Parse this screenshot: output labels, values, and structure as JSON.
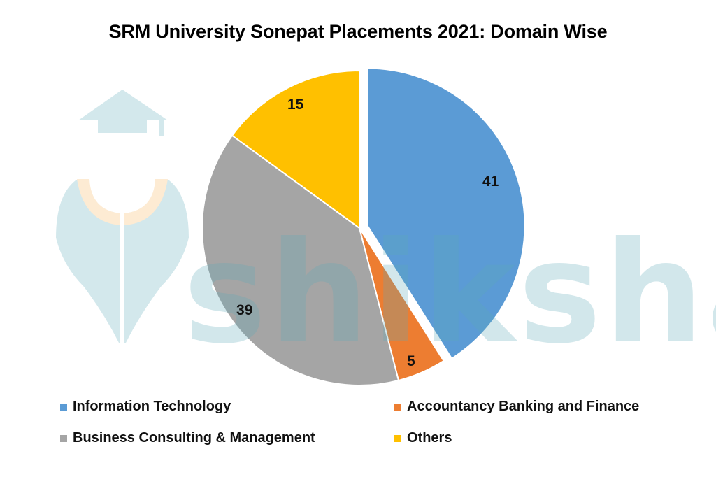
{
  "chart_data": {
    "type": "pie",
    "title": "SRM University Sonepat Placements 2021: Domain Wise",
    "categories": [
      "Information Technology",
      "Accountancy Banking and Finance",
      "Business Consulting & Management",
      "Others"
    ],
    "values": [
      41,
      5,
      39,
      15
    ],
    "colors": [
      "#5B9BD5",
      "#ED7D31",
      "#A5A5A5",
      "#FFC000"
    ],
    "data_labels": [
      "41",
      "5",
      "39",
      "15"
    ],
    "exploded": [
      "Information Technology"
    ],
    "legend_position": "bottom"
  },
  "title": "SRM University Sonepat Placements 2021: Domain Wise",
  "labels": {
    "it": "41",
    "abf": "5",
    "bcm": "39",
    "others": "15"
  },
  "legend": {
    "items": [
      {
        "label": "Information Technology",
        "color": "#5B9BD5"
      },
      {
        "label": "Accountancy Banking and Finance",
        "color": "#ED7D31"
      },
      {
        "label": "Business Consulting & Management",
        "color": "#A5A5A5"
      },
      {
        "label": "Others",
        "color": "#FFC000"
      }
    ]
  },
  "watermark": {
    "text": "shiksha",
    "icon": "graduate-logo-icon"
  }
}
